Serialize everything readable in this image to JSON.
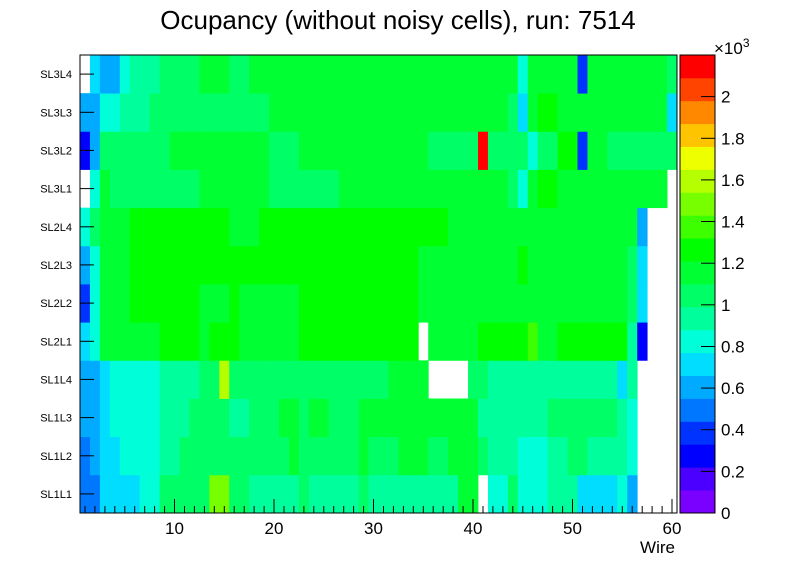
{
  "chart_data": {
    "type": "heatmap",
    "title": "Ocupancy (without noisy cells), run: 7514",
    "xlabel": "Wire",
    "ylabel": "",
    "x_range": [
      0.5,
      60.5
    ],
    "x_ticks": [
      10,
      20,
      30,
      40,
      50,
      60
    ],
    "rows": [
      "SL1L1",
      "SL1L2",
      "SL1L3",
      "SL1L4",
      "SL2L1",
      "SL2L2",
      "SL2L3",
      "SL2L4",
      "SL3L1",
      "SL3L2",
      "SL3L3",
      "SL3L4"
    ],
    "z_range": [
      0,
      2200
    ],
    "z_unit_label": "×10",
    "z_unit_exponent": "3",
    "colorbar_ticks": [
      {
        "value": 0,
        "label": "0"
      },
      {
        "value": 200,
        "label": "0.2"
      },
      {
        "value": 400,
        "label": "0.4"
      },
      {
        "value": 600,
        "label": "0.6"
      },
      {
        "value": 800,
        "label": "0.8"
      },
      {
        "value": 1000,
        "label": "1"
      },
      {
        "value": 1200,
        "label": "1.2"
      },
      {
        "value": 1400,
        "label": "1.4"
      },
      {
        "value": 1600,
        "label": "1.6"
      },
      {
        "value": 1800,
        "label": "1.8"
      },
      {
        "value": 2000,
        "label": "2"
      }
    ],
    "palette": [
      "#7a00ff",
      "#4b00ff",
      "#0000ff",
      "#0033ff",
      "#0077ff",
      "#00aaff",
      "#00ddff",
      "#00ffd9",
      "#00ff9c",
      "#00ff66",
      "#00ff33",
      "#00ff00",
      "#3dff00",
      "#77ff00",
      "#b5ff00",
      "#eeff00",
      "#ffc400",
      "#ff8800",
      "#ff4400",
      "#ff0000"
    ],
    "values": [
      [
        500,
        500,
        700,
        750,
        750,
        750,
        850,
        850,
        1000,
        1000,
        1000,
        1000,
        1000,
        1450,
        1450,
        1000,
        1000,
        950,
        950,
        950,
        950,
        950,
        1000,
        900,
        950,
        950,
        950,
        950,
        1000,
        900,
        900,
        900,
        950,
        950,
        950,
        950,
        900,
        900,
        1100,
        1100,
        null,
        850,
        850,
        1000,
        850,
        850,
        850,
        950,
        950,
        950,
        750,
        750,
        700,
        700,
        800,
        600,
        null,
        null,
        null,
        null
      ],
      [
        500,
        550,
        750,
        750,
        800,
        800,
        800,
        800,
        900,
        900,
        1050,
        1050,
        1050,
        1050,
        1050,
        1000,
        1000,
        1050,
        1050,
        1050,
        1050,
        1100,
        1050,
        1050,
        1050,
        1050,
        1000,
        1000,
        1100,
        1050,
        1050,
        1050,
        1100,
        1100,
        1100,
        1050,
        1050,
        1100,
        1100,
        1150,
        1000,
        900,
        900,
        900,
        850,
        850,
        850,
        950,
        950,
        1000,
        1000,
        950,
        950,
        950,
        950,
        800,
        null,
        null,
        null,
        null
      ],
      [
        550,
        600,
        750,
        800,
        800,
        850,
        850,
        850,
        900,
        900,
        950,
        1000,
        1000,
        1000,
        1000,
        950,
        950,
        1000,
        1050,
        1050,
        1100,
        1100,
        1050,
        1100,
        1100,
        1050,
        1000,
        1050,
        1100,
        1100,
        1100,
        1100,
        1150,
        1150,
        1100,
        1100,
        1100,
        1100,
        1150,
        1150,
        950,
        950,
        950,
        950,
        900,
        900,
        900,
        1000,
        1000,
        1000,
        1000,
        1000,
        1000,
        1000,
        950,
        850,
        null,
        null,
        null,
        null
      ],
      [
        600,
        650,
        750,
        800,
        800,
        850,
        850,
        850,
        900,
        900,
        950,
        950,
        1000,
        1000,
        1550,
        1000,
        1000,
        1050,
        1050,
        1050,
        1050,
        1000,
        1000,
        1050,
        1050,
        1050,
        1050,
        1050,
        1050,
        1050,
        1050,
        1100,
        1100,
        1100,
        1100,
        null,
        null,
        null,
        null,
        1000,
        1000,
        950,
        950,
        900,
        900,
        900,
        900,
        950,
        950,
        950,
        950,
        950,
        950,
        900,
        750,
        900,
        null,
        null,
        null,
        null
      ],
      [
        750,
        800,
        1100,
        1100,
        1200,
        1200,
        1200,
        1200,
        1250,
        1250,
        1250,
        1250,
        1200,
        1250,
        1250,
        1250,
        1150,
        1150,
        1200,
        1200,
        1200,
        1200,
        1250,
        1250,
        1250,
        1250,
        1300,
        1300,
        1300,
        1300,
        1300,
        1300,
        1300,
        1250,
        null,
        1200,
        1200,
        1150,
        1150,
        1150,
        1250,
        1250,
        1250,
        1300,
        1300,
        1350,
        1200,
        1200,
        1250,
        1250,
        1250,
        1250,
        1250,
        1250,
        1250,
        950,
        250,
        null,
        null,
        null
      ],
      [
        400,
        800,
        1100,
        1150,
        1200,
        1250,
        1250,
        1250,
        1250,
        1250,
        1300,
        1300,
        1200,
        1200,
        1200,
        1300,
        1200,
        1200,
        1200,
        1200,
        1200,
        1200,
        1250,
        1250,
        1250,
        1250,
        1300,
        1300,
        1300,
        1300,
        1300,
        1300,
        1300,
        1250,
        1200,
        1200,
        1150,
        1150,
        1150,
        1100,
        1100,
        1100,
        1100,
        1100,
        1150,
        1150,
        1150,
        1150,
        1150,
        1200,
        1200,
        1200,
        1200,
        1200,
        1150,
        1000,
        700,
        null,
        null,
        null
      ],
      [
        600,
        800,
        1150,
        1150,
        1200,
        1250,
        1250,
        1250,
        1250,
        1250,
        1250,
        1300,
        1250,
        1250,
        1250,
        1250,
        1250,
        1250,
        1300,
        1250,
        1250,
        1250,
        1250,
        1250,
        1250,
        1250,
        1300,
        1300,
        1300,
        1300,
        1300,
        1300,
        1300,
        1250,
        1200,
        1150,
        1150,
        1150,
        1150,
        1150,
        1150,
        1150,
        1150,
        1200,
        1300,
        1150,
        1150,
        1150,
        1200,
        1200,
        1200,
        1200,
        1200,
        1200,
        1150,
        1000,
        750,
        null,
        null,
        null
      ],
      [
        800,
        1000,
        1150,
        1200,
        1200,
        1250,
        1250,
        1300,
        1300,
        1250,
        1250,
        1250,
        1250,
        1250,
        1250,
        1200,
        1200,
        1200,
        1250,
        1250,
        1250,
        1250,
        1250,
        1250,
        1250,
        1250,
        1250,
        1300,
        1250,
        1250,
        1250,
        1250,
        1250,
        1250,
        1250,
        1250,
        1250,
        1200,
        1200,
        1200,
        1200,
        1200,
        1150,
        1150,
        1150,
        1150,
        1150,
        1150,
        1150,
        1150,
        1150,
        1150,
        1150,
        1150,
        1150,
        1150,
        600,
        null,
        null,
        null
      ],
      [
        null,
        800,
        1100,
        1000,
        1000,
        1000,
        1050,
        1050,
        1050,
        1050,
        1050,
        1050,
        1100,
        1100,
        1100,
        1100,
        1100,
        1100,
        1100,
        1050,
        1050,
        1050,
        1050,
        1050,
        1050,
        1050,
        1100,
        1100,
        1150,
        1100,
        1100,
        1100,
        1100,
        1100,
        1100,
        1100,
        1100,
        1100,
        1100,
        1100,
        1100,
        1100,
        1100,
        1000,
        850,
        1150,
        1300,
        1250,
        1150,
        1100,
        1100,
        1100,
        1100,
        1100,
        1100,
        1100,
        1100,
        1100,
        1150,
        null
      ],
      [
        250,
        650,
        1000,
        1000,
        1000,
        1050,
        1050,
        1050,
        1050,
        1100,
        1100,
        1100,
        1100,
        1100,
        1100,
        1100,
        1100,
        1100,
        1100,
        1050,
        1050,
        1050,
        1100,
        1100,
        1100,
        1100,
        1100,
        1100,
        1100,
        1100,
        1100,
        1100,
        1100,
        1100,
        1100,
        1050,
        1050,
        1050,
        1050,
        1050,
        2150,
        1050,
        1050,
        1050,
        1000,
        850,
        1050,
        1050,
        1250,
        1250,
        400,
        1100,
        1100,
        1050,
        1050,
        1050,
        1050,
        1050,
        1050,
        1050
      ],
      [
        550,
        650,
        800,
        850,
        950,
        950,
        950,
        1000,
        1000,
        1000,
        1000,
        1000,
        1050,
        1050,
        1050,
        1050,
        1050,
        1050,
        1050,
        1100,
        1100,
        1100,
        1100,
        1100,
        1100,
        1100,
        1100,
        1100,
        1100,
        1100,
        1100,
        1100,
        1100,
        1100,
        1100,
        1100,
        1100,
        1100,
        1100,
        1100,
        1100,
        1100,
        1100,
        1050,
        750,
        1200,
        1300,
        1300,
        1200,
        1200,
        1200,
        1200,
        1200,
        1200,
        1150,
        1100,
        1100,
        1100,
        1100,
        700
      ],
      [
        null,
        700,
        550,
        600,
        850,
        900,
        950,
        950,
        1050,
        1050,
        1050,
        1050,
        1100,
        1100,
        1100,
        1050,
        1050,
        1100,
        1100,
        1100,
        1100,
        1100,
        1100,
        1100,
        1100,
        1100,
        1100,
        1100,
        1100,
        1100,
        1100,
        1100,
        1100,
        1100,
        1100,
        1100,
        1100,
        1100,
        1100,
        1100,
        1100,
        1100,
        1100,
        1100,
        850,
        1150,
        1150,
        1100,
        1100,
        1100,
        350,
        1150,
        1150,
        1100,
        1100,
        1100,
        1100,
        1100,
        1100,
        1050
      ]
    ]
  }
}
